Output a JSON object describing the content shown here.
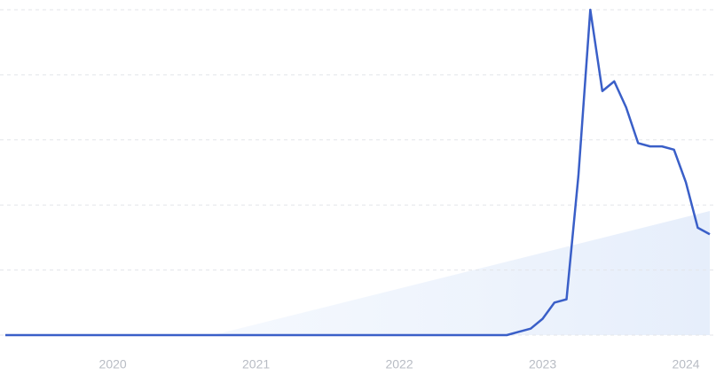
{
  "chart_data": {
    "type": "line",
    "x": [
      2019.25,
      2019.333,
      2019.417,
      2019.5,
      2019.583,
      2019.667,
      2019.75,
      2019.833,
      2019.917,
      2020,
      2020.083,
      2020.167,
      2020.25,
      2020.333,
      2020.417,
      2020.5,
      2020.583,
      2020.667,
      2020.75,
      2020.833,
      2020.917,
      2021,
      2021.083,
      2021.167,
      2021.25,
      2021.333,
      2021.417,
      2021.5,
      2021.583,
      2021.667,
      2021.75,
      2021.833,
      2021.917,
      2022,
      2022.083,
      2022.167,
      2022.25,
      2022.333,
      2022.417,
      2022.5,
      2022.583,
      2022.667,
      2022.75,
      2022.833,
      2022.917,
      2023,
      2023.083,
      2023.167,
      2023.25,
      2023.333,
      2023.417,
      2023.5,
      2023.583,
      2023.667,
      2023.75,
      2023.833,
      2023.917,
      2024,
      2024.083,
      2024.167
    ],
    "series": [
      {
        "color": "#3a5fc8",
        "values": [
          0,
          0,
          0,
          0,
          0,
          0,
          0,
          0,
          0,
          0,
          0,
          0,
          0,
          0,
          0,
          0,
          0,
          0,
          0,
          0,
          0,
          0,
          0,
          0,
          0,
          0,
          0,
          0,
          0,
          0,
          0,
          0,
          0,
          0,
          0,
          0,
          0,
          0,
          0,
          0,
          0,
          0,
          0,
          1,
          2,
          5,
          10,
          11,
          49,
          100,
          75,
          78,
          70,
          59,
          58,
          58,
          57,
          47,
          33,
          31
        ]
      }
    ],
    "xlim": [
      2019.25,
      2024.167
    ],
    "xticks": [
      2020,
      2021,
      2022,
      2023,
      2024
    ],
    "ylim": [
      0,
      100
    ],
    "yticks": [
      0,
      20,
      40,
      60,
      80,
      100
    ],
    "grid": true
  }
}
